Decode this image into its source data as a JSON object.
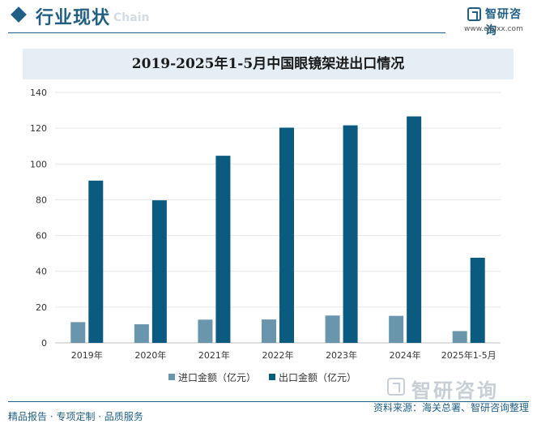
{
  "header": {
    "section_title": "行业现状",
    "section_title_en": "Chain",
    "logo_text": "智研咨询",
    "logo_url": "www.chyxx.com"
  },
  "footer": {
    "left_text": "精品报告 · 专项定制 · 品质服务",
    "source_text": "资料来源：海关总署、智研咨询整理",
    "logo_text": "智研咨询"
  },
  "colors": {
    "brand": "#1f5f86",
    "import_series": "#6a96ad",
    "export_series": "#0b5b80",
    "title_bar": "#e4eef4"
  },
  "chart_data": {
    "type": "bar",
    "title": "2019-2025年1-5月中国眼镜架进出口情况",
    "xlabel": "",
    "ylabel": "",
    "ylim": [
      0,
      140
    ],
    "yticks": [
      0,
      20,
      40,
      60,
      80,
      100,
      120,
      140
    ],
    "categories": [
      "2019年",
      "2020年",
      "2021年",
      "2022年",
      "2023年",
      "2024年",
      "2025年1-5月"
    ],
    "series": [
      {
        "name": "进口金额（亿元）",
        "values": [
          11.6,
          10.4,
          13.0,
          13.1,
          15.3,
          15.1,
          6.6
        ]
      },
      {
        "name": "出口金额（亿元）",
        "values": [
          90.7,
          79.7,
          104.6,
          120.3,
          121.6,
          126.6,
          47.6
        ]
      }
    ],
    "grid": true,
    "legend_position": "bottom"
  }
}
